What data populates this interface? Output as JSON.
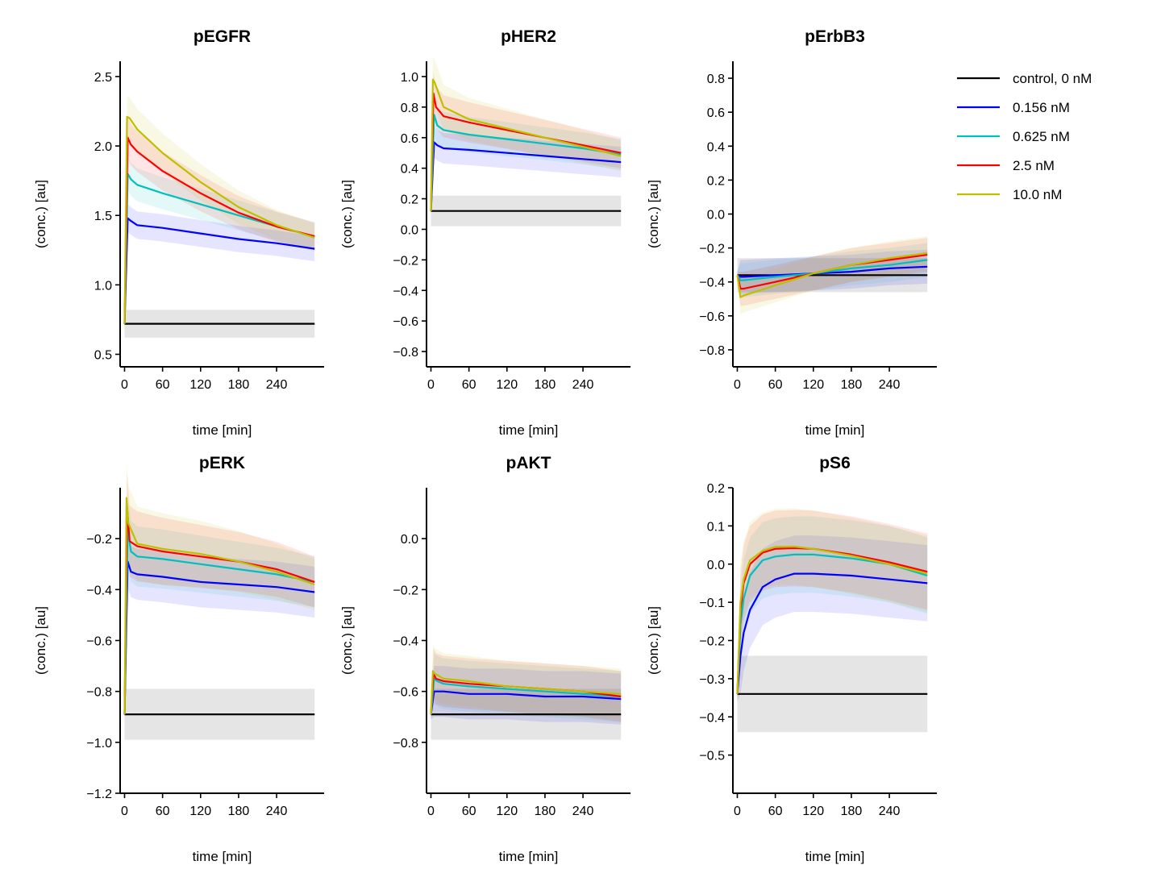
{
  "colors": {
    "control": "#000000",
    "0.156": "#0000ff",
    "0.625": "#00bfbf",
    "2.5": "#ff0000",
    "10.0": "#bfbf00",
    "control_band": "#e5e5e5"
  },
  "legend": [
    "control, 0 nM",
    "0.156 nM",
    "0.625 nM",
    "2.5 nM",
    "10.0 nM"
  ],
  "chart_data": [
    {
      "type": "line",
      "title": "pEGFR",
      "xlabel": "time [min]",
      "ylabel": "(conc.) [au]",
      "xlim": [
        -7,
        315
      ],
      "ylim": [
        0.41,
        2.61
      ],
      "xticks": [
        0,
        60,
        120,
        180,
        240
      ],
      "yticks": [
        0.5,
        1.0,
        1.5,
        2.0,
        2.5
      ],
      "ytick_labels": [
        "0.5",
        "1.0",
        "1.5",
        "2.0",
        "2.5"
      ],
      "control": {
        "value": 0.72,
        "band": [
          0.62,
          0.82
        ]
      },
      "series": [
        {
          "name": "0.156 nM",
          "x": [
            0,
            5,
            10,
            20,
            60,
            120,
            180,
            240,
            300
          ],
          "y": [
            0.72,
            1.48,
            1.46,
            1.43,
            1.41,
            1.37,
            1.33,
            1.3,
            1.26
          ],
          "band": [
            0.1,
            0.1,
            0.09
          ]
        },
        {
          "name": "0.625 nM",
          "x": [
            0,
            5,
            10,
            20,
            60,
            120,
            180,
            240,
            300
          ],
          "y": [
            0.72,
            1.8,
            1.76,
            1.72,
            1.66,
            1.58,
            1.5,
            1.42,
            1.35
          ],
          "band": [
            0.12,
            0.11,
            0.1
          ]
        },
        {
          "name": "2.5 nM",
          "x": [
            0,
            5,
            10,
            20,
            60,
            120,
            180,
            240,
            300
          ],
          "y": [
            0.72,
            2.06,
            2.01,
            1.96,
            1.82,
            1.66,
            1.52,
            1.42,
            1.35
          ],
          "band": [
            0.15,
            0.12,
            0.1
          ]
        },
        {
          "name": "10.0 nM",
          "x": [
            0,
            4,
            8,
            20,
            60,
            120,
            180,
            240,
            300
          ],
          "y": [
            0.72,
            2.21,
            2.2,
            2.12,
            1.95,
            1.74,
            1.56,
            1.43,
            1.34
          ],
          "band": [
            0.15,
            0.12,
            0.1
          ]
        }
      ]
    },
    {
      "type": "line",
      "title": "pHER2",
      "xlabel": "time [min]",
      "ylabel": "(conc.) [au]",
      "xlim": [
        -7,
        315
      ],
      "ylim": [
        -0.9,
        1.1
      ],
      "xticks": [
        0,
        60,
        120,
        180,
        240
      ],
      "yticks": [
        -0.8,
        -0.6,
        -0.4,
        -0.2,
        0.0,
        0.2,
        0.4,
        0.6,
        0.8,
        1.0
      ],
      "ytick_labels": [
        "−0.8",
        "−0.6",
        "−0.4",
        "−0.2",
        "0.0",
        "0.2",
        "0.4",
        "0.6",
        "0.8",
        "1.0"
      ],
      "control": {
        "value": 0.12,
        "band": [
          0.02,
          0.22
        ]
      },
      "series": [
        {
          "name": "0.156 nM",
          "x": [
            0,
            5,
            10,
            20,
            60,
            120,
            180,
            240,
            300
          ],
          "y": [
            0.12,
            0.57,
            0.55,
            0.53,
            0.52,
            0.5,
            0.48,
            0.46,
            0.44
          ],
          "band": [
            0.1,
            0.1,
            0.1
          ]
        },
        {
          "name": "0.625 nM",
          "x": [
            0,
            5,
            10,
            20,
            60,
            120,
            180,
            240,
            300
          ],
          "y": [
            0.12,
            0.75,
            0.68,
            0.65,
            0.62,
            0.59,
            0.56,
            0.53,
            0.49
          ],
          "band": [
            0.12,
            0.11,
            0.1
          ]
        },
        {
          "name": "2.5 nM",
          "x": [
            0,
            4,
            8,
            20,
            60,
            120,
            180,
            240,
            300
          ],
          "y": [
            0.12,
            0.89,
            0.8,
            0.74,
            0.7,
            0.65,
            0.6,
            0.55,
            0.5
          ],
          "band": [
            0.14,
            0.12,
            0.1
          ]
        },
        {
          "name": "10.0 nM",
          "x": [
            0,
            3,
            6,
            20,
            60,
            120,
            180,
            240,
            300
          ],
          "y": [
            0.12,
            0.98,
            0.96,
            0.8,
            0.72,
            0.66,
            0.6,
            0.54,
            0.48
          ],
          "band": [
            0.15,
            0.12,
            0.1
          ]
        }
      ]
    },
    {
      "type": "line",
      "title": "pErbB3",
      "xlabel": "time [min]",
      "ylabel": "(conc.) [au]",
      "xlim": [
        -7,
        315
      ],
      "ylim": [
        -0.9,
        0.9
      ],
      "xticks": [
        0,
        60,
        120,
        180,
        240
      ],
      "yticks": [
        -0.8,
        -0.6,
        -0.4,
        -0.2,
        0.0,
        0.2,
        0.4,
        0.6,
        0.8
      ],
      "ytick_labels": [
        "−0.8",
        "−0.6",
        "−0.4",
        "−0.2",
        "0.0",
        "0.2",
        "0.4",
        "0.6",
        "0.8"
      ],
      "control": {
        "value": -0.36,
        "band": [
          -0.46,
          -0.26
        ]
      },
      "series": [
        {
          "name": "0.156 nM",
          "x": [
            0,
            5,
            10,
            60,
            120,
            180,
            240,
            300
          ],
          "y": [
            -0.36,
            -0.37,
            -0.37,
            -0.36,
            -0.35,
            -0.34,
            -0.32,
            -0.31
          ],
          "band": [
            0.1,
            0.1,
            0.1
          ]
        },
        {
          "name": "0.625 nM",
          "x": [
            0,
            5,
            10,
            60,
            120,
            180,
            240,
            300
          ],
          "y": [
            -0.36,
            -0.39,
            -0.39,
            -0.37,
            -0.35,
            -0.32,
            -0.3,
            -0.27
          ],
          "band": [
            0.1,
            0.1,
            0.1
          ]
        },
        {
          "name": "2.5 nM",
          "x": [
            0,
            5,
            10,
            60,
            120,
            180,
            240,
            300
          ],
          "y": [
            -0.36,
            -0.44,
            -0.44,
            -0.4,
            -0.35,
            -0.3,
            -0.27,
            -0.24
          ],
          "band": [
            0.1,
            0.1,
            0.1
          ]
        },
        {
          "name": "10.0 nM",
          "x": [
            0,
            5,
            10,
            60,
            120,
            180,
            240,
            300
          ],
          "y": [
            -0.36,
            -0.49,
            -0.48,
            -0.42,
            -0.35,
            -0.3,
            -0.26,
            -0.23
          ],
          "band": [
            0.1,
            0.1,
            0.1
          ]
        }
      ]
    },
    {
      "type": "line",
      "title": "pERK",
      "xlabel": "time [min]",
      "ylabel": "(conc.) [au]",
      "xlim": [
        -7,
        315
      ],
      "ylim": [
        -1.2,
        0.0
      ],
      "xticks": [
        0,
        60,
        120,
        180,
        240
      ],
      "yticks": [
        -1.2,
        -1.0,
        -0.8,
        -0.6,
        -0.4,
        -0.2
      ],
      "ytick_labels": [
        "−1.2",
        "−1.0",
        "−0.8",
        "−0.6",
        "−0.4",
        "−0.2"
      ],
      "control": {
        "value": -0.89,
        "band": [
          -0.99,
          -0.79
        ]
      },
      "series": [
        {
          "name": "0.156 nM",
          "x": [
            0,
            5,
            10,
            20,
            60,
            120,
            180,
            240,
            300
          ],
          "y": [
            -0.89,
            -0.29,
            -0.33,
            -0.34,
            -0.35,
            -0.37,
            -0.38,
            -0.39,
            -0.41
          ],
          "band": [
            0.1,
            0.1,
            0.1
          ]
        },
        {
          "name": "0.625 nM",
          "x": [
            0,
            5,
            10,
            20,
            60,
            120,
            180,
            240,
            300
          ],
          "y": [
            -0.89,
            -0.16,
            -0.25,
            -0.27,
            -0.28,
            -0.3,
            -0.32,
            -0.34,
            -0.37
          ],
          "band": [
            0.12,
            0.1,
            0.1
          ]
        },
        {
          "name": "2.5 nM",
          "x": [
            0,
            4,
            8,
            20,
            60,
            120,
            180,
            240,
            300
          ],
          "y": [
            -0.89,
            -0.08,
            -0.21,
            -0.23,
            -0.25,
            -0.27,
            -0.29,
            -0.32,
            -0.37
          ],
          "band": [
            0.14,
            0.11,
            0.1
          ]
        },
        {
          "name": "10.0 nM",
          "x": [
            0,
            3,
            6,
            20,
            60,
            120,
            180,
            240,
            300
          ],
          "y": [
            -0.89,
            -0.04,
            -0.14,
            -0.22,
            -0.24,
            -0.26,
            -0.29,
            -0.33,
            -0.38
          ],
          "band": [
            0.15,
            0.12,
            0.1
          ]
        }
      ]
    },
    {
      "type": "line",
      "title": "pAKT",
      "xlabel": "time [min]",
      "ylabel": "(conc.) [au]",
      "xlim": [
        -7,
        315
      ],
      "ylim": [
        -1.0,
        0.2
      ],
      "xticks": [
        0,
        60,
        120,
        180,
        240
      ],
      "yticks": [
        -0.8,
        -0.6,
        -0.4,
        -0.2,
        0.0
      ],
      "ytick_labels": [
        "−0.8",
        "−0.6",
        "−0.4",
        "−0.2",
        "0.0"
      ],
      "control": {
        "value": -0.69,
        "band": [
          -0.79,
          -0.59
        ]
      },
      "series": [
        {
          "name": "0.156 nM",
          "x": [
            0,
            5,
            10,
            20,
            60,
            120,
            180,
            240,
            300
          ],
          "y": [
            -0.69,
            -0.6,
            -0.6,
            -0.6,
            -0.61,
            -0.61,
            -0.62,
            -0.62,
            -0.63
          ],
          "band": [
            0.1,
            0.1,
            0.1
          ]
        },
        {
          "name": "0.625 nM",
          "x": [
            0,
            5,
            10,
            20,
            60,
            120,
            180,
            240,
            300
          ],
          "y": [
            -0.69,
            -0.55,
            -0.56,
            -0.57,
            -0.58,
            -0.59,
            -0.6,
            -0.61,
            -0.62
          ],
          "band": [
            0.1,
            0.1,
            0.1
          ]
        },
        {
          "name": "2.5 nM",
          "x": [
            0,
            4,
            8,
            20,
            60,
            120,
            180,
            240,
            300
          ],
          "y": [
            -0.69,
            -0.53,
            -0.55,
            -0.56,
            -0.57,
            -0.58,
            -0.59,
            -0.6,
            -0.62
          ],
          "band": [
            0.1,
            0.1,
            0.1
          ]
        },
        {
          "name": "10.0 nM",
          "x": [
            0,
            3,
            6,
            20,
            60,
            120,
            180,
            240,
            300
          ],
          "y": [
            -0.69,
            -0.52,
            -0.53,
            -0.55,
            -0.56,
            -0.58,
            -0.59,
            -0.6,
            -0.61
          ],
          "band": [
            0.1,
            0.1,
            0.1
          ]
        }
      ]
    },
    {
      "type": "line",
      "title": "pS6",
      "xlabel": "time [min]",
      "ylabel": "(conc.) [au]",
      "xlim": [
        -7,
        315
      ],
      "ylim": [
        -0.6,
        0.2
      ],
      "xticks": [
        0,
        60,
        120,
        180,
        240
      ],
      "yticks": [
        -0.5,
        -0.4,
        -0.3,
        -0.2,
        -0.1,
        0.0,
        0.1,
        0.2
      ],
      "ytick_labels": [
        "−0.5",
        "−0.4",
        "−0.3",
        "−0.2",
        "−0.1",
        "0.0",
        "0.1",
        "0.2"
      ],
      "control": {
        "value": -0.34,
        "band": [
          -0.44,
          -0.24
        ]
      },
      "series": [
        {
          "name": "0.156 nM",
          "x": [
            0,
            5,
            10,
            20,
            40,
            60,
            90,
            120,
            180,
            240,
            300
          ],
          "y": [
            -0.34,
            -0.24,
            -0.18,
            -0.12,
            -0.06,
            -0.04,
            -0.025,
            -0.025,
            -0.03,
            -0.04,
            -0.05
          ],
          "band": [
            0.1,
            0.1,
            0.1
          ]
        },
        {
          "name": "0.625 nM",
          "x": [
            0,
            5,
            10,
            20,
            40,
            60,
            90,
            120,
            180,
            240,
            300
          ],
          "y": [
            -0.34,
            -0.16,
            -0.09,
            -0.03,
            0.01,
            0.02,
            0.025,
            0.025,
            0.015,
            0.0,
            -0.03
          ],
          "band": [
            0.1,
            0.1,
            0.1
          ]
        },
        {
          "name": "2.5 nM",
          "x": [
            0,
            5,
            10,
            20,
            40,
            60,
            90,
            120,
            180,
            240,
            300
          ],
          "y": [
            -0.34,
            -0.12,
            -0.05,
            0.0,
            0.03,
            0.04,
            0.042,
            0.04,
            0.025,
            0.005,
            -0.02
          ],
          "band": [
            0.1,
            0.1,
            0.1
          ]
        },
        {
          "name": "10.0 nM",
          "x": [
            0,
            5,
            10,
            20,
            40,
            60,
            90,
            120,
            180,
            240,
            300
          ],
          "y": [
            -0.34,
            -0.1,
            -0.04,
            0.01,
            0.035,
            0.045,
            0.046,
            0.04,
            0.022,
            0.0,
            -0.025
          ],
          "band": [
            0.1,
            0.1,
            0.1
          ]
        }
      ]
    }
  ]
}
